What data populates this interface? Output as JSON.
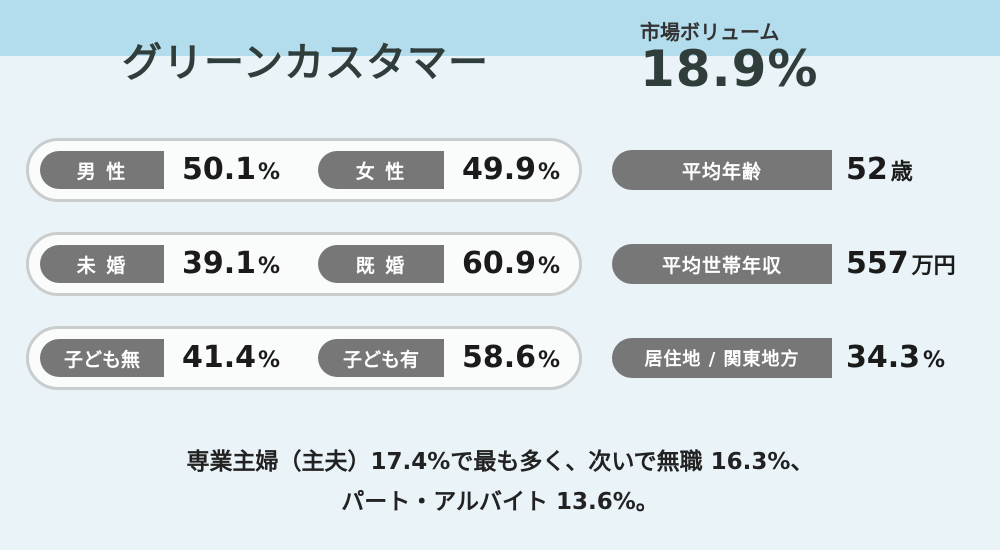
{
  "header": {
    "title": "グリーンカスタマー",
    "volume_label": "市場ボリューム",
    "volume_value": "18.9%"
  },
  "rows": [
    {
      "left_label": "男 性",
      "left_value": "50.1",
      "left_unit": "%",
      "right_label": "女 性",
      "right_value": "49.9",
      "right_unit": "%"
    },
    {
      "left_label": "未 婚",
      "left_value": "39.1",
      "left_unit": "%",
      "right_label": "既 婚",
      "right_value": "60.9",
      "right_unit": "%"
    },
    {
      "left_label": "子ども無",
      "left_value": "41.4",
      "left_unit": "%",
      "right_label": "子ども有",
      "right_value": "58.6",
      "right_unit": "%"
    }
  ],
  "stats": [
    {
      "label": "平均年齢",
      "value": "52",
      "unit": "歳"
    },
    {
      "label": "平均世帯年収",
      "value": "557",
      "unit": "万円"
    },
    {
      "label": "居住地 / 関東地方",
      "value": "34.3",
      "unit": "%"
    }
  ],
  "summary": {
    "line1": "専業主婦（主夫）17.4%で最も多く、次いで無職 16.3%、",
    "line2": "パート・アルバイト 13.6%。"
  },
  "colors": {
    "header_band": "#b3dcec",
    "background": "#e9f3f8",
    "tag": "#777777",
    "title": "#2f3d3b"
  }
}
